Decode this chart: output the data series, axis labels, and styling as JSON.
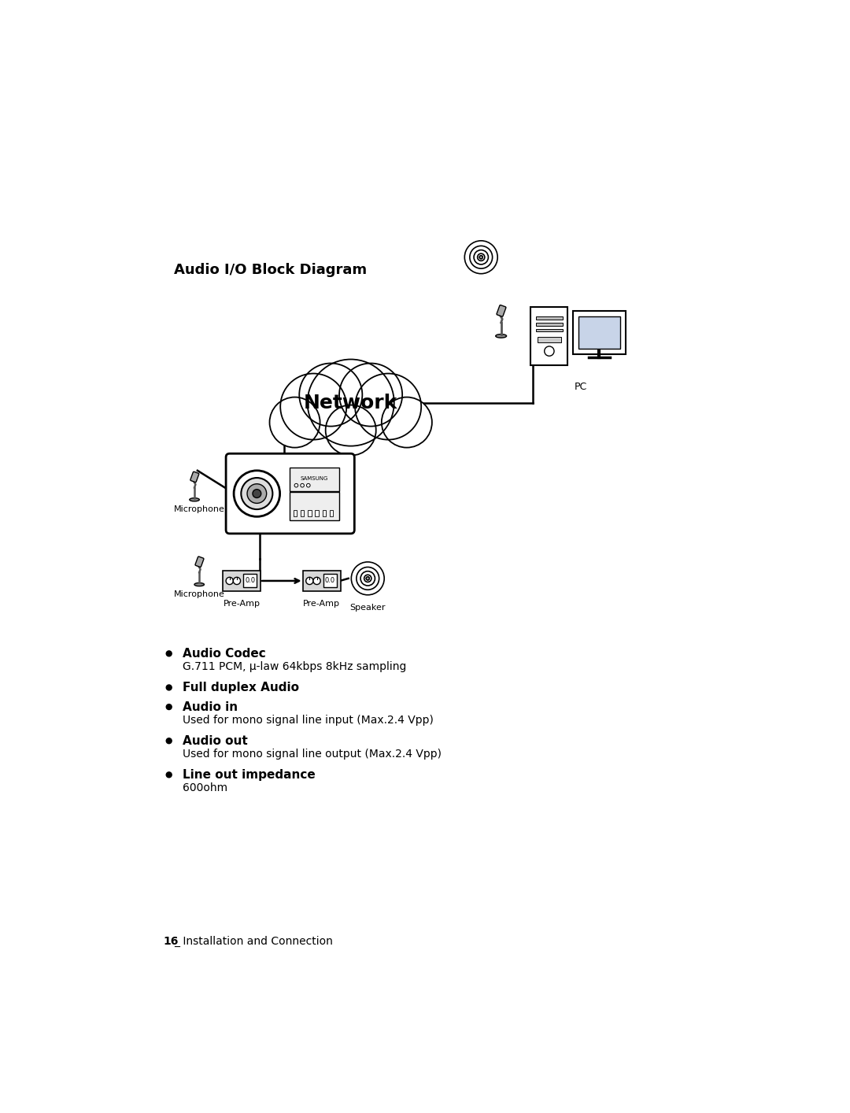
{
  "title": "Audio I/O Block Diagram",
  "title_fontsize": 13,
  "background_color": "#ffffff",
  "text_color": "#000000",
  "network_label": "Network",
  "pc_label": "PC",
  "microphone_label1": "Microphone",
  "microphone_label2": "Microphone",
  "preamp_label1": "Pre-Amp",
  "preamp_label2": "Pre-Amp",
  "speaker_label": "Speaker",
  "bullet_items": [
    {
      "bold": "Audio Codec",
      "normal": "G.711 PCM, μ-law 64kbps 8kHz sampling"
    },
    {
      "bold": "Full duplex Audio",
      "normal": ""
    },
    {
      "bold": "Audio in",
      "normal": "Used for mono signal line input (Max.2.4 Vpp)"
    },
    {
      "bold": "Audio out",
      "normal": "Used for mono signal line output (Max.2.4 Vpp)"
    },
    {
      "bold": "Line out impedance",
      "normal": "600ohm"
    }
  ],
  "footer_bold": "16",
  "footer_normal": "_ Installation and Connection"
}
